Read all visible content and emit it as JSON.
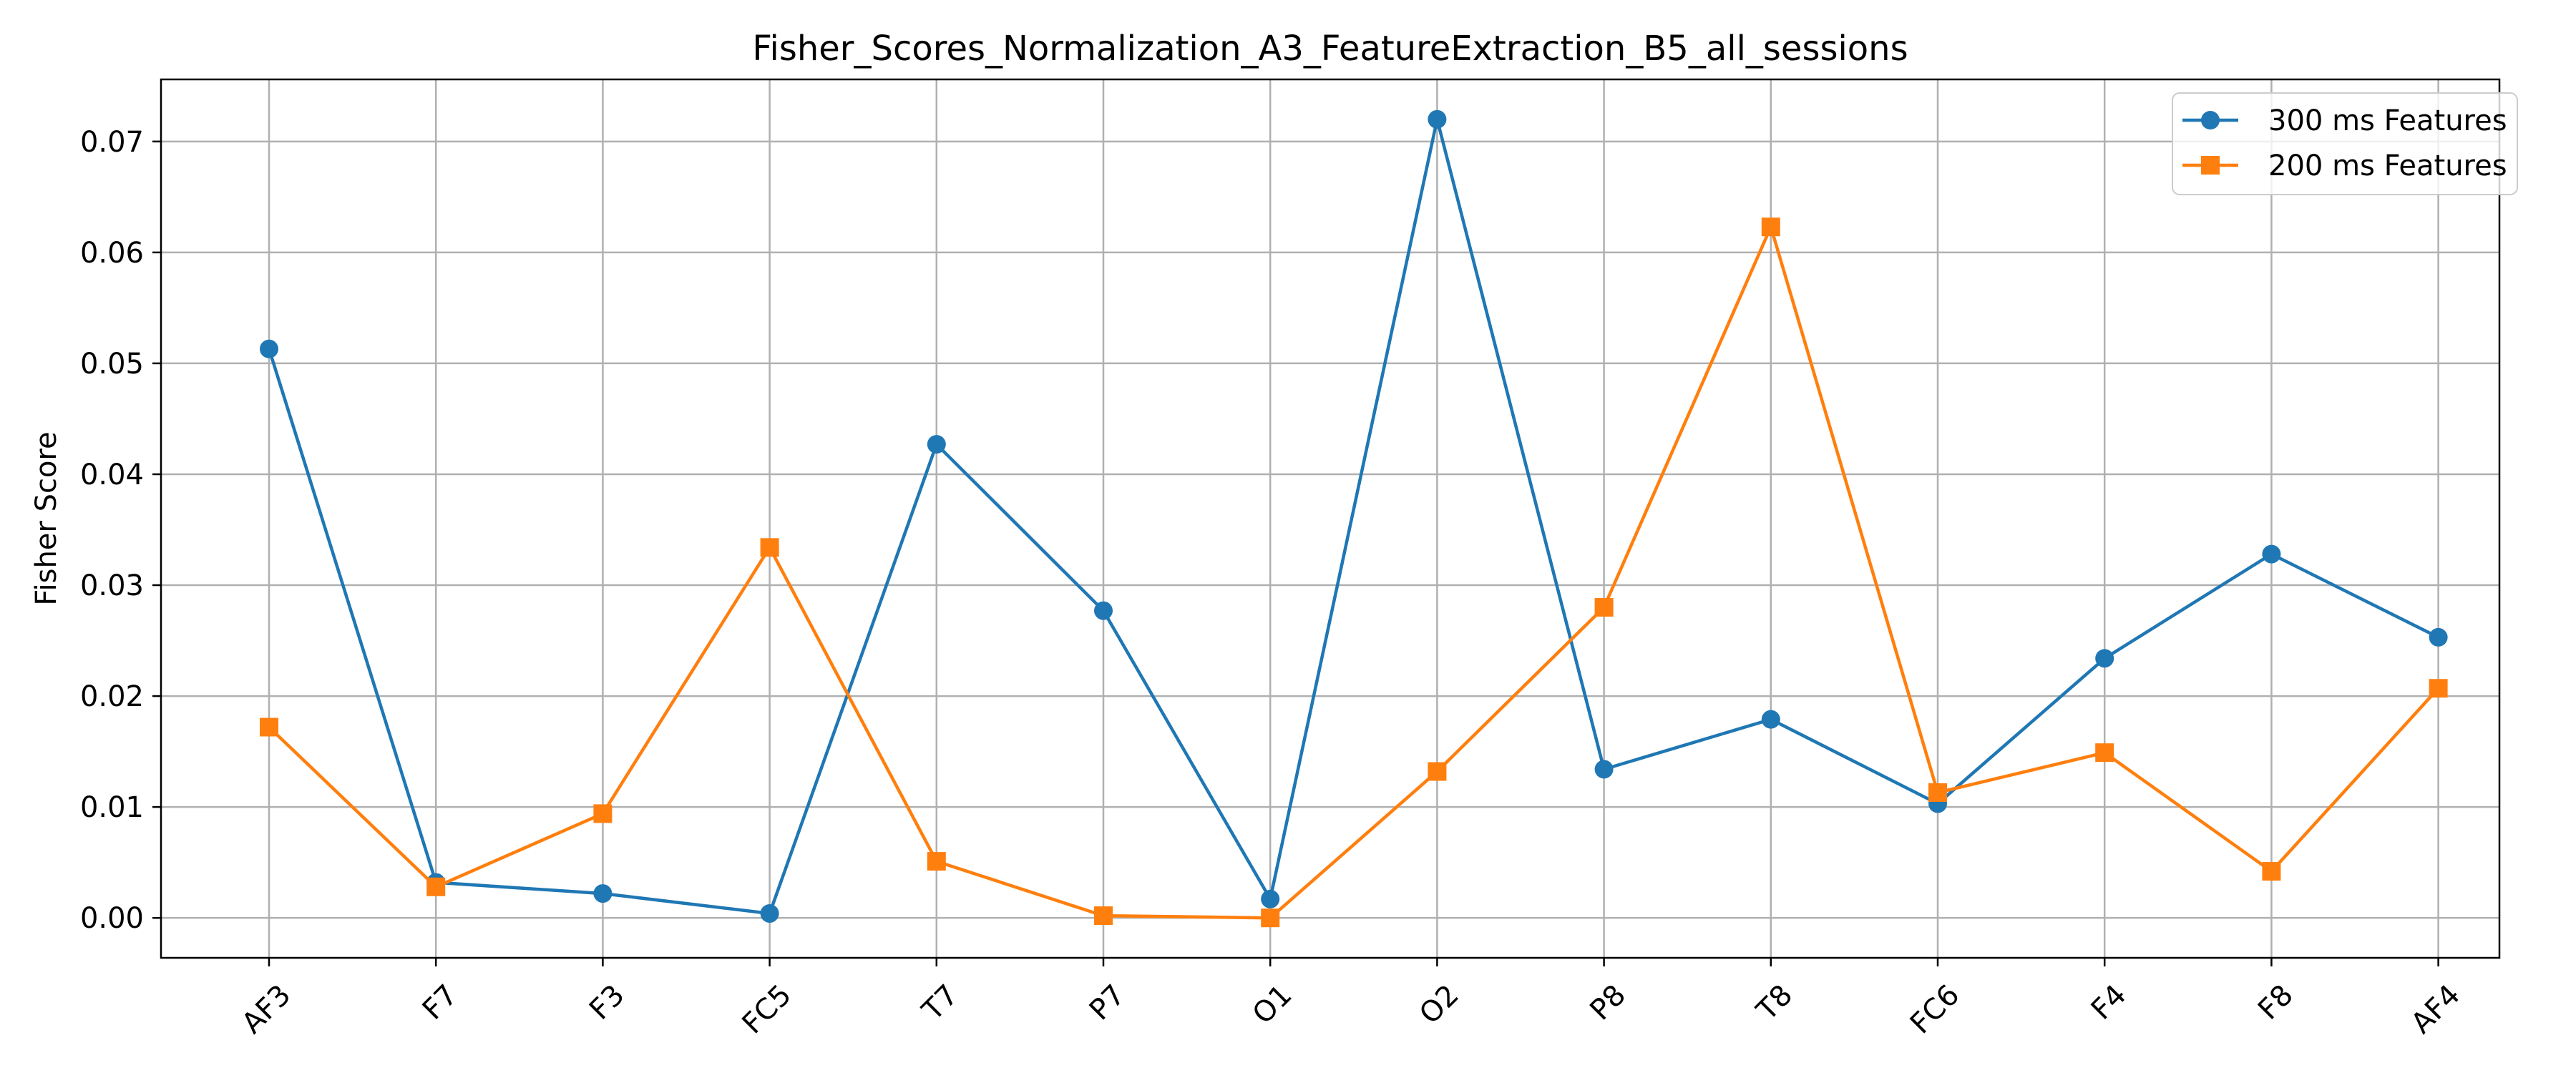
{
  "chart_data": {
    "type": "line",
    "title": "Fisher_Scores_Normalization_A3_FeatureExtraction_B5_all_sessions",
    "xlabel": "",
    "ylabel": "Fisher Score",
    "categories": [
      "AF3",
      "F7",
      "F3",
      "FC5",
      "T7",
      "P7",
      "O1",
      "O2",
      "P8",
      "T8",
      "FC6",
      "F4",
      "F8",
      "AF4"
    ],
    "series": [
      {
        "name": "300 ms Features",
        "color": "#1f77b4",
        "marker": "circle",
        "values": [
          0.0513,
          0.0032,
          0.0022,
          0.0004,
          0.0427,
          0.0277,
          0.0017,
          0.072,
          0.0134,
          0.0179,
          0.0103,
          0.0234,
          0.0328,
          0.0253
        ]
      },
      {
        "name": "200 ms Features",
        "color": "#ff7f0e",
        "marker": "square",
        "values": [
          0.0172,
          0.0028,
          0.0094,
          0.0334,
          0.0051,
          0.0002,
          0.0,
          0.0132,
          0.028,
          0.0623,
          0.0113,
          0.0149,
          0.0042,
          0.0207
        ]
      }
    ],
    "ylim": [
      -0.0036,
      0.0756
    ],
    "yticks": [
      "0.00",
      "0.01",
      "0.02",
      "0.03",
      "0.04",
      "0.05",
      "0.06",
      "0.07"
    ],
    "grid": true,
    "legend_position": "top-right",
    "xtick_rotation": "45 degrees"
  }
}
